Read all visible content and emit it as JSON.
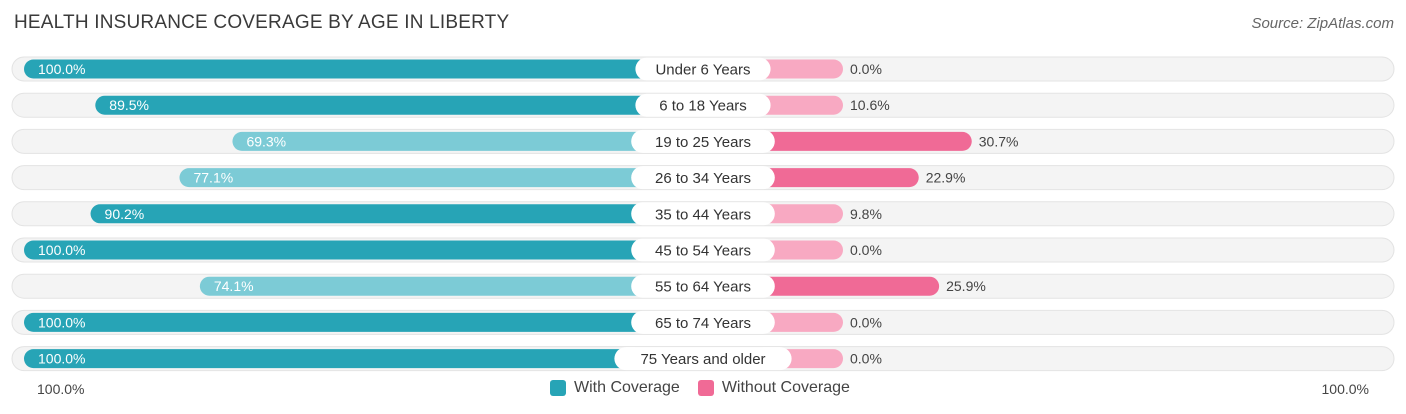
{
  "header": {
    "title": "HEALTH INSURANCE COVERAGE BY AGE IN LIBERTY",
    "source": "Source: ZipAtlas.com"
  },
  "colors": {
    "with_strong": "#27a4b6",
    "with_light": "#7ccbd6",
    "without_strong": "#f06a96",
    "without_light": "#f8a9c2",
    "track": "#efefef"
  },
  "chart_data": {
    "type": "bar",
    "orientation": "horizontal-diverging",
    "title": "HEALTH INSURANCE COVERAGE BY AGE IN LIBERTY",
    "categories": [
      "Under 6 Years",
      "6 to 18 Years",
      "19 to 25 Years",
      "26 to 34 Years",
      "35 to 44 Years",
      "45 to 54 Years",
      "55 to 64 Years",
      "65 to 74 Years",
      "75 Years and older"
    ],
    "series": [
      {
        "name": "With Coverage",
        "values": [
          100.0,
          89.5,
          69.3,
          77.1,
          90.2,
          100.0,
          74.1,
          100.0,
          100.0
        ],
        "labels": [
          "100.0%",
          "89.5%",
          "69.3%",
          "77.1%",
          "90.2%",
          "100.0%",
          "74.1%",
          "100.0%",
          "100.0%"
        ]
      },
      {
        "name": "Without Coverage",
        "values": [
          0.0,
          10.6,
          30.7,
          22.9,
          9.8,
          0.0,
          25.9,
          0.0,
          0.0
        ],
        "labels": [
          "0.0%",
          "10.6%",
          "30.7%",
          "22.9%",
          "9.8%",
          "0.0%",
          "25.9%",
          "0.0%",
          "0.0%"
        ]
      }
    ],
    "xlim": [
      0,
      100
    ],
    "axis_left_label": "100.0%",
    "axis_right_label": "100.0%",
    "legend_position": "bottom-center"
  }
}
